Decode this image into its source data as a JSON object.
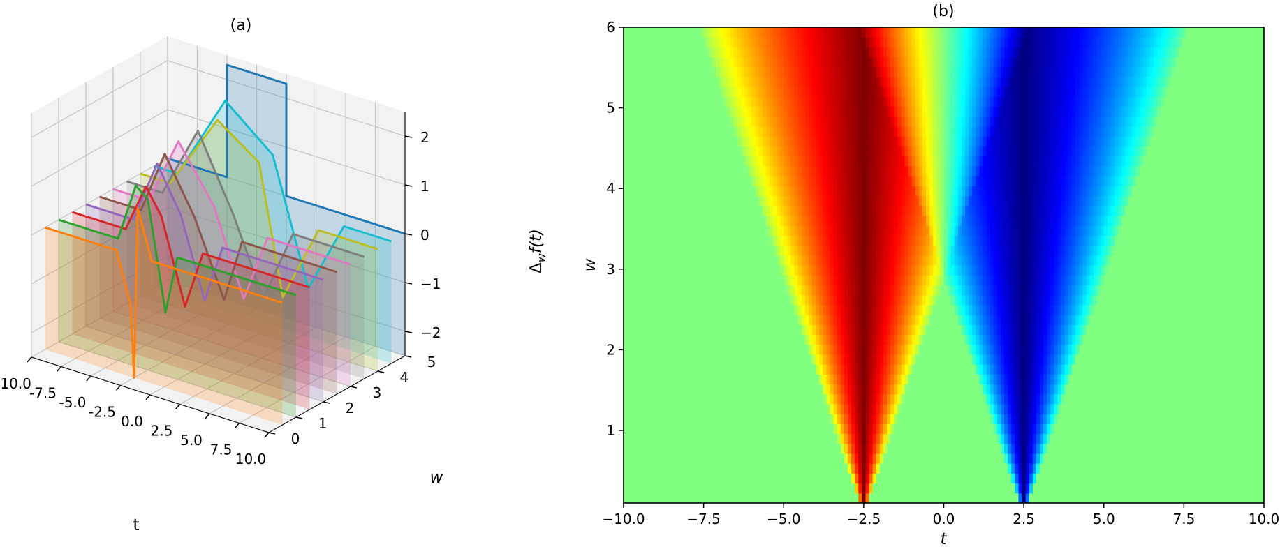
{
  "chart_data": [
    {
      "type": "line3d",
      "title": "(a)",
      "xlabel": "t",
      "ylabel": "w",
      "zlabel": "Δwf(t)",
      "zlabel_base": "Δ",
      "zlabel_sub": "w",
      "zlabel_rest": "f(t)",
      "xlim": [
        -10,
        10
      ],
      "ylim": [
        0,
        5
      ],
      "zlim": [
        -2.5,
        2.5
      ],
      "x_ticks": [
        "-10.0",
        "-7.5",
        "-5.0",
        "-2.5",
        "0.0",
        "2.5",
        "5.0",
        "7.5",
        "10.0"
      ],
      "y_ticks": [
        "0",
        "1",
        "2",
        "3",
        "4",
        "5"
      ],
      "z_ticks": [
        "-2",
        "-1",
        "0",
        "1",
        "2"
      ],
      "series": [
        {
          "w": 0.5,
          "color": "#ff7f0e",
          "t": [
            -10,
            -4.0,
            -2.8,
            -2.5,
            -2.2,
            -1.0,
            10
          ],
          "z": [
            0,
            0,
            -1.0,
            -2.5,
            1.0,
            0,
            0
          ]
        },
        {
          "w": 1.0,
          "color": "#2ca02c",
          "t": [
            -10,
            -5.0,
            -3.5,
            -2.5,
            -1.0,
            0.0,
            10
          ],
          "z": [
            0,
            0,
            1.2,
            1.0,
            -1.2,
            0,
            0
          ]
        },
        {
          "w": 1.5,
          "color": "#d62728",
          "t": [
            -10,
            -5.5,
            -3.8,
            -2.5,
            -0.5,
            1.0,
            10
          ],
          "z": [
            0,
            0,
            1.0,
            0.5,
            -1.2,
            0,
            0
          ]
        },
        {
          "w": 2.0,
          "color": "#9467bd",
          "t": [
            -10,
            -6.0,
            -4.0,
            -2.0,
            0.0,
            1.5,
            10
          ],
          "z": [
            0,
            0,
            1.3,
            0.4,
            -1.2,
            0,
            0
          ]
        },
        {
          "w": 2.5,
          "color": "#8c564b",
          "t": [
            -10,
            -6.5,
            -4.5,
            -2.0,
            0.5,
            2.0,
            10
          ],
          "z": [
            0,
            0,
            1.3,
            0.2,
            -1.3,
            0,
            0
          ]
        },
        {
          "w": 3.0,
          "color": "#e377c2",
          "t": [
            -10,
            -7.0,
            -4.5,
            -1.5,
            1.0,
            3.0,
            10
          ],
          "z": [
            0,
            0,
            1.4,
            0.3,
            -1.4,
            0,
            0
          ]
        },
        {
          "w": 3.5,
          "color": "#7f7f7f",
          "t": [
            -10,
            -7.0,
            -4.0,
            -1.0,
            1.5,
            4.0,
            10
          ],
          "z": [
            0,
            0,
            1.5,
            0.0,
            -1.5,
            0,
            0
          ]
        },
        {
          "w": 4.0,
          "color": "#bcbd22",
          "t": [
            -10,
            -7.5,
            -3.5,
            0.0,
            2.0,
            5.0,
            10
          ],
          "z": [
            0,
            0,
            1.6,
            1.0,
            -1.6,
            0,
            0
          ]
        },
        {
          "w": 4.5,
          "color": "#17becf",
          "t": [
            -10,
            -8.0,
            -4.0,
            0.0,
            3.0,
            6.0,
            10
          ],
          "z": [
            0,
            0,
            1.8,
            1.0,
            -1.5,
            0,
            0
          ]
        },
        {
          "w": 5.0,
          "color": "#1f77b4",
          "t": [
            -10,
            -5.0,
            -5.0,
            0.0,
            0.0,
            5.0,
            5.0,
            10
          ],
          "z": [
            0,
            0,
            2.3,
            2.3,
            0,
            0,
            0,
            0
          ]
        }
      ]
    },
    {
      "type": "heatmap",
      "title": "(b)",
      "xlabel": "t",
      "ylabel": "w",
      "xlim": [
        -10,
        10
      ],
      "ylim": [
        0.1,
        6
      ],
      "x_ticks": [
        "−10.0",
        "−7.5",
        "−5.0",
        "−2.5",
        "0.0",
        "2.5",
        "5.0",
        "7.5",
        "10.0"
      ],
      "y_ticks": [
        "1",
        "2",
        "3",
        "4",
        "5",
        "6"
      ],
      "colormap": "jet",
      "positive_center_t": -2.5,
      "negative_center_t": 2.5,
      "value_range": [
        -1,
        1
      ]
    }
  ]
}
